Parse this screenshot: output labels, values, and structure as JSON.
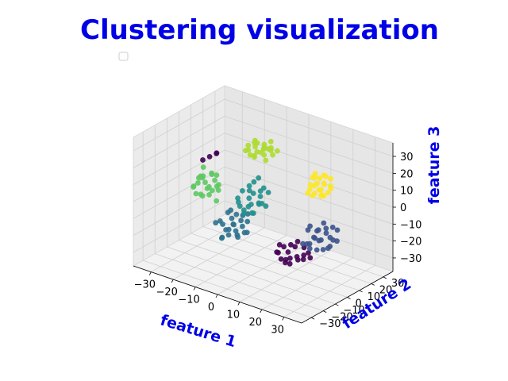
{
  "chart_data": {
    "type": "scatter",
    "title": "Clustering visualization",
    "xlabel": "feature 1",
    "ylabel": "feature 2",
    "zlabel": "feature 3",
    "projection": "3d",
    "xlim": [
      -38,
      38
    ],
    "ylim": [
      -38,
      38
    ],
    "zlim": [
      -38,
      38
    ],
    "x_ticks": [
      -30,
      -20,
      -10,
      0,
      10,
      20,
      30
    ],
    "y_ticks": [
      -30,
      -20,
      -10,
      0,
      10,
      20,
      30
    ],
    "z_ticks": [
      -30,
      -20,
      -10,
      0,
      10,
      20,
      30
    ],
    "grid": true,
    "legend": "empty, upper-left",
    "colormap": "viridis",
    "series": [
      {
        "color": "#440154",
        "points": [
          [
            8,
            6,
            -27
          ],
          [
            10,
            4,
            -29
          ],
          [
            5,
            8,
            -26
          ],
          [
            12,
            6,
            -28
          ],
          [
            7,
            2,
            -30
          ],
          [
            14,
            8,
            -27
          ],
          [
            4,
            4,
            -28
          ],
          [
            9,
            10,
            -25
          ],
          [
            11,
            2,
            -31
          ],
          [
            6,
            12,
            -26
          ],
          [
            13,
            5,
            -29
          ],
          [
            3,
            7,
            -30
          ],
          [
            16,
            4,
            -27
          ],
          [
            8,
            14,
            -24
          ],
          [
            10,
            0,
            -30
          ],
          [
            15,
            10,
            -26
          ],
          [
            2,
            10,
            -27
          ],
          [
            12,
            12,
            -25
          ],
          [
            18,
            6,
            -26
          ],
          [
            7,
            6,
            -32
          ],
          [
            -22,
            -4,
            20
          ],
          [
            -20,
            -2,
            22
          ],
          [
            -24,
            -6,
            18
          ],
          [
            -21,
            0,
            21
          ]
        ]
      },
      {
        "color": "#3b528b",
        "points": [
          [
            22,
            6,
            -14
          ],
          [
            24,
            4,
            -12
          ],
          [
            20,
            8,
            -10
          ],
          [
            26,
            2,
            -16
          ],
          [
            23,
            10,
            -8
          ],
          [
            21,
            0,
            -14
          ],
          [
            25,
            8,
            -18
          ],
          [
            19,
            4,
            -6
          ],
          [
            27,
            6,
            -10
          ],
          [
            22,
            12,
            -12
          ],
          [
            24,
            -2,
            -8
          ],
          [
            20,
            2,
            -18
          ],
          [
            28,
            4,
            -14
          ],
          [
            23,
            8,
            -4
          ],
          [
            18,
            10,
            -16
          ],
          [
            26,
            10,
            -6
          ],
          [
            21,
            6,
            -20
          ],
          [
            25,
            0,
            -4
          ],
          [
            29,
            8,
            -12
          ],
          [
            17,
            6,
            -10
          ],
          [
            24,
            14,
            -16
          ],
          [
            22,
            -4,
            -12
          ],
          [
            27,
            12,
            -8
          ],
          [
            19,
            -2,
            -14
          ]
        ]
      },
      {
        "color": "#21908d",
        "points": [
          [
            -2,
            -8,
            6
          ],
          [
            0,
            -10,
            4
          ],
          [
            2,
            -6,
            8
          ],
          [
            -4,
            -12,
            2
          ],
          [
            1,
            -4,
            10
          ],
          [
            -1,
            -14,
            0
          ],
          [
            3,
            -9,
            5
          ],
          [
            -3,
            -6,
            12
          ],
          [
            0,
            -16,
            3
          ],
          [
            4,
            -11,
            7
          ],
          [
            -5,
            -8,
            9
          ],
          [
            2,
            -13,
            1
          ],
          [
            -2,
            -4,
            14
          ],
          [
            5,
            -7,
            4
          ],
          [
            -3,
            -15,
            6
          ],
          [
            1,
            -10,
            11
          ],
          [
            -6,
            -10,
            5
          ],
          [
            3,
            -5,
            13
          ],
          [
            0,
            -8,
            -2
          ],
          [
            6,
            -12,
            8
          ],
          [
            -1,
            -2,
            16
          ],
          [
            2,
            -16,
            6
          ],
          [
            -4,
            -4,
            8
          ],
          [
            4,
            -3,
            10
          ]
        ]
      },
      {
        "color": "#2c728e",
        "points": [
          [
            -10,
            -6,
            -14
          ],
          [
            -8,
            -8,
            -16
          ],
          [
            -12,
            -4,
            -12
          ],
          [
            -6,
            -10,
            -18
          ],
          [
            -11,
            -2,
            -10
          ],
          [
            -9,
            -12,
            -14
          ],
          [
            -13,
            -7,
            -18
          ],
          [
            -7,
            -4,
            -8
          ],
          [
            -14,
            -10,
            -12
          ],
          [
            -8,
            -14,
            -16
          ],
          [
            -10,
            0,
            -14
          ],
          [
            -5,
            -8,
            -12
          ],
          [
            -12,
            -12,
            -20
          ],
          [
            -9,
            -5,
            -20
          ],
          [
            -15,
            -6,
            -16
          ],
          [
            -6,
            -2,
            -12
          ],
          [
            -11,
            -9,
            -6
          ],
          [
            -7,
            -12,
            -10
          ],
          [
            -13,
            -3,
            -8
          ],
          [
            -4,
            -6,
            -16
          ],
          [
            -10,
            -16,
            -18
          ],
          [
            -8,
            2,
            -10
          ],
          [
            -16,
            -10,
            -14
          ],
          [
            -3,
            -10,
            -14
          ]
        ]
      },
      {
        "color": "#5ec962",
        "points": [
          [
            -24,
            -4,
            4
          ],
          [
            -22,
            -6,
            2
          ],
          [
            -26,
            -2,
            6
          ],
          [
            -20,
            -8,
            0
          ],
          [
            -25,
            -6,
            8
          ],
          [
            -23,
            0,
            -2
          ],
          [
            -21,
            -4,
            10
          ],
          [
            -27,
            -8,
            2
          ],
          [
            -19,
            -2,
            4
          ],
          [
            -24,
            -10,
            6
          ],
          [
            -22,
            2,
            0
          ],
          [
            -26,
            -4,
            -4
          ],
          [
            -20,
            -6,
            12
          ],
          [
            -28,
            -2,
            4
          ],
          [
            -23,
            -8,
            -2
          ],
          [
            -21,
            0,
            8
          ],
          [
            -25,
            -12,
            4
          ],
          [
            -18,
            -4,
            2
          ],
          [
            -27,
            0,
            10
          ],
          [
            -22,
            -10,
            10
          ],
          [
            -24,
            4,
            2
          ],
          [
            -20,
            -2,
            -6
          ],
          [
            -26,
            -8,
            -2
          ],
          [
            -19,
            -10,
            6
          ]
        ]
      },
      {
        "color": "#addc30",
        "points": [
          [
            -6,
            6,
            26
          ],
          [
            -4,
            8,
            28
          ],
          [
            -8,
            4,
            24
          ],
          [
            -2,
            10,
            27
          ],
          [
            -7,
            8,
            30
          ],
          [
            -5,
            2,
            25
          ],
          [
            -3,
            6,
            29
          ],
          [
            -9,
            10,
            26
          ],
          [
            -1,
            4,
            24
          ],
          [
            -6,
            12,
            28
          ],
          [
            -4,
            0,
            27
          ],
          [
            -8,
            8,
            31
          ],
          [
            0,
            8,
            26
          ],
          [
            -5,
            10,
            23
          ],
          [
            -10,
            6,
            28
          ],
          [
            -2,
            2,
            29
          ],
          [
            -7,
            14,
            25
          ],
          [
            -3,
            12,
            31
          ],
          [
            -9,
            2,
            27
          ],
          [
            1,
            10,
            28
          ],
          [
            -6,
            4,
            32
          ],
          [
            -4,
            14,
            26
          ],
          [
            -11,
            8,
            24
          ],
          [
            -1,
            6,
            30
          ]
        ]
      },
      {
        "color": "#fde725",
        "points": [
          [
            20,
            8,
            18
          ],
          [
            22,
            6,
            16
          ],
          [
            18,
            10,
            20
          ],
          [
            24,
            4,
            14
          ],
          [
            21,
            12,
            17
          ],
          [
            19,
            6,
            22
          ],
          [
            23,
            8,
            12
          ],
          [
            17,
            8,
            16
          ],
          [
            25,
            10,
            18
          ],
          [
            20,
            14,
            15
          ],
          [
            22,
            2,
            20
          ],
          [
            18,
            4,
            13
          ],
          [
            24,
            12,
            21
          ],
          [
            21,
            10,
            11
          ],
          [
            19,
            12,
            19
          ],
          [
            26,
            6,
            16
          ],
          [
            20,
            2,
            17
          ],
          [
            23,
            14,
            14
          ],
          [
            17,
            12,
            21
          ],
          [
            25,
            2,
            19
          ],
          [
            22,
            10,
            23
          ],
          [
            18,
            8,
            10
          ],
          [
            24,
            8,
            24
          ],
          [
            20,
            6,
            13
          ]
        ]
      }
    ]
  }
}
